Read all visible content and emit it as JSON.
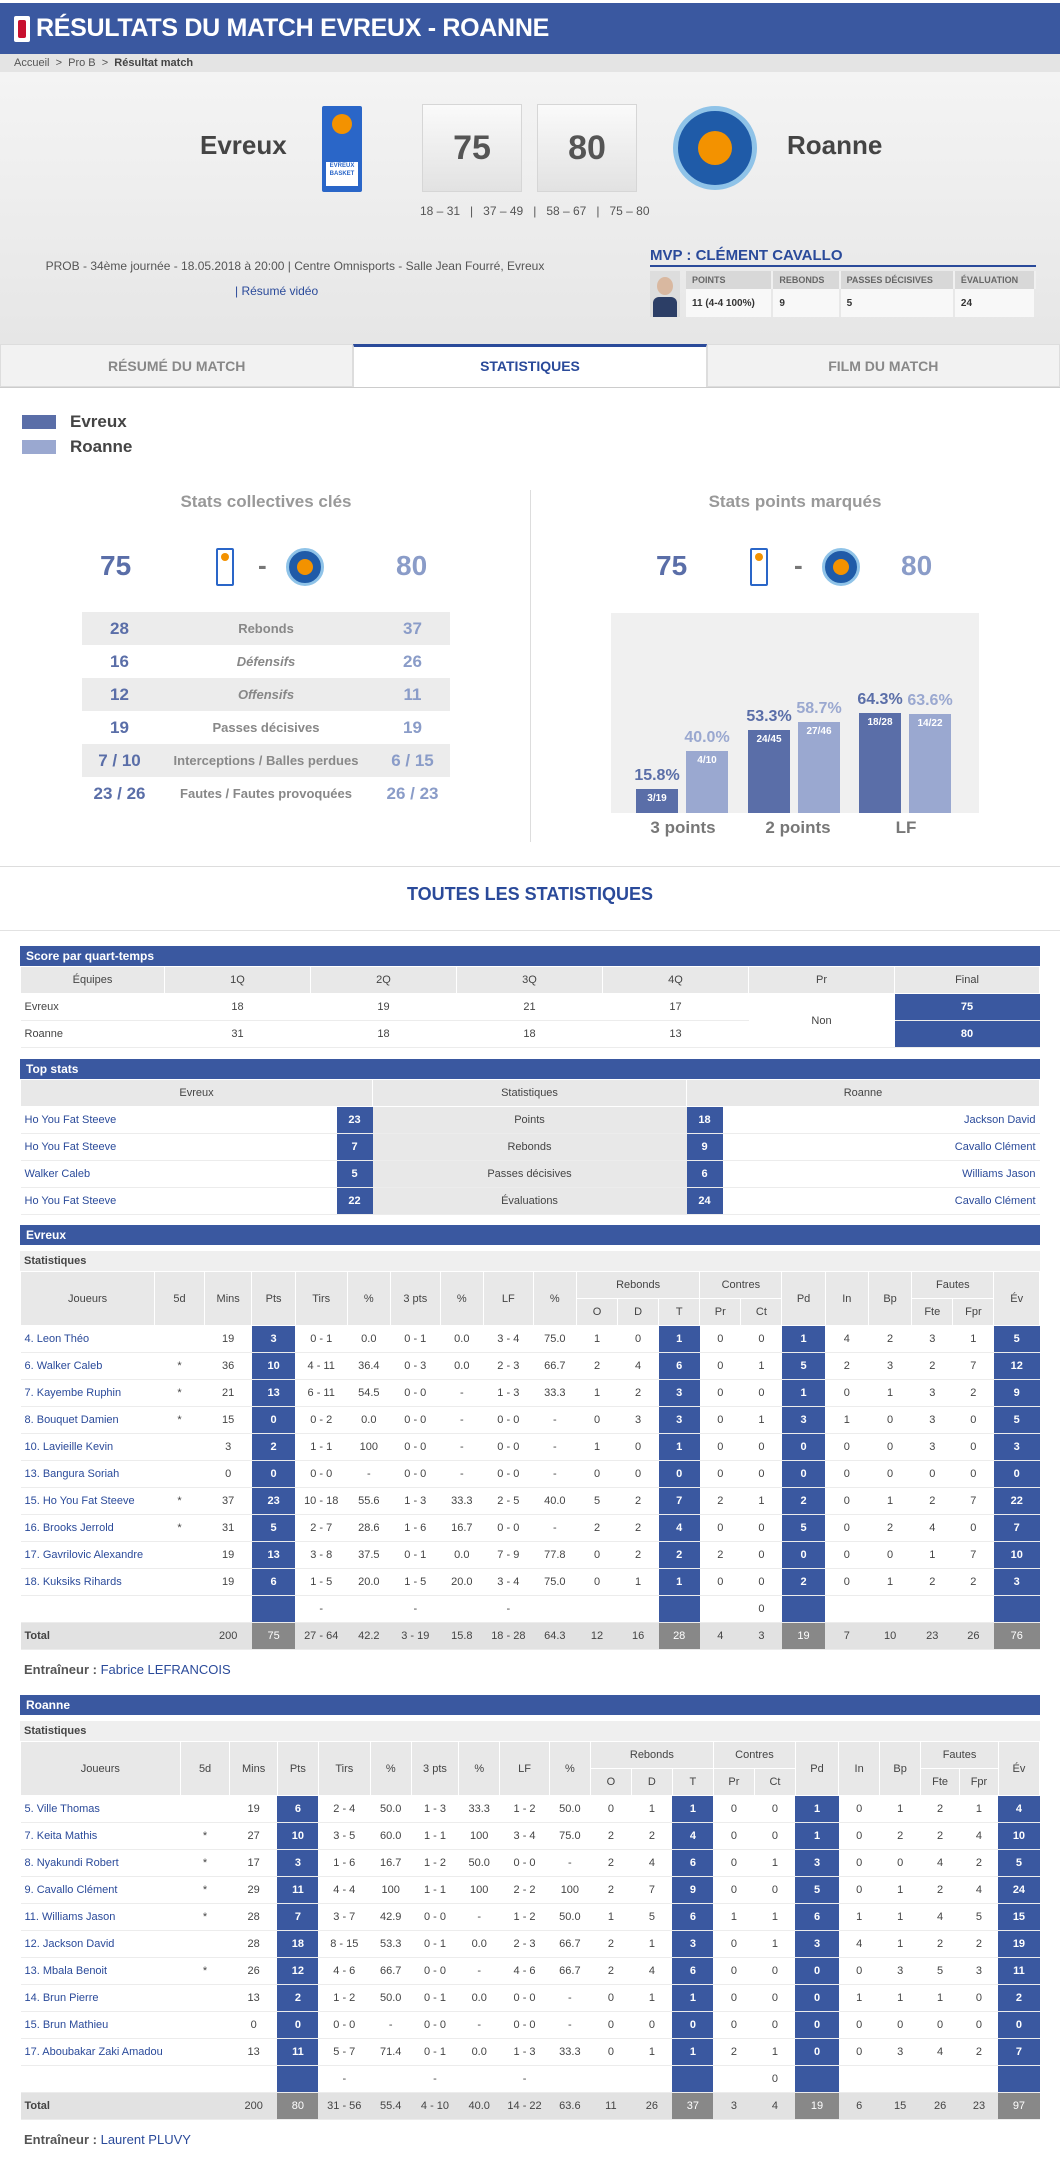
{
  "header": {
    "title": "RÉSULTATS DU MATCH EVREUX - ROANNE"
  },
  "breadcrumb": {
    "home": "Accueil",
    "league": "Pro B",
    "current": "Résultat match"
  },
  "match": {
    "home": "Evreux",
    "away": "Roanne",
    "home_score": "75",
    "away_score": "80",
    "quarters": "18 – 31   |   37 – 49   |   58 – 67   |   75 – 80",
    "info": "PROB - 34ème journée - 18.05.2018 à 20:00 | Centre Omnisports - Salle Jean Fourré, Evreux",
    "video": "| Résumé vidéo"
  },
  "mvp": {
    "title": "MVP : CLÉMENT CAVALLO",
    "headers": [
      "POINTS",
      "REBONDS",
      "PASSES DÉCISIVES",
      "ÉVALUATION"
    ],
    "values": [
      "11 (4-4 100%)",
      "9",
      "5",
      "24"
    ]
  },
  "tabs": [
    "RÉSUMÉ DU MATCH",
    "STATISTIQUES",
    "FILM DU MATCH"
  ],
  "legend": {
    "home": "Evreux",
    "away": "Roanne"
  },
  "key_stats": {
    "title": "Stats collectives clés",
    "rows": [
      [
        "28",
        "Rebonds",
        "37"
      ],
      [
        "16",
        "Défensifs",
        "26"
      ],
      [
        "12",
        "Offensifs",
        "11"
      ],
      [
        "19",
        "Passes décisives",
        "19"
      ],
      [
        "7 / 10",
        "Interceptions / Balles perdues",
        "6 / 15"
      ],
      [
        "23 / 26",
        "Fautes / Fautes provoquées",
        "26 / 23"
      ]
    ]
  },
  "points_chart": {
    "title": "Stats points marqués"
  },
  "chart_data": {
    "type": "bar",
    "categories": [
      "3 points",
      "2 points",
      "LF"
    ],
    "series": [
      {
        "name": "Evreux",
        "values": [
          15.8,
          53.3,
          64.3
        ],
        "labels": [
          "3/19",
          "24/45",
          "18/28"
        ],
        "pct": [
          "15.8%",
          "53.3%",
          "64.3%"
        ]
      },
      {
        "name": "Roanne",
        "values": [
          40.0,
          58.7,
          63.6
        ],
        "labels": [
          "4/10",
          "27/46",
          "14/22"
        ],
        "pct": [
          "40.0%",
          "58.7%",
          "63.6%"
        ]
      }
    ],
    "ylim": [
      0,
      100
    ]
  },
  "colors": {
    "home": "#5a6ea8",
    "away": "#9aa8d0",
    "accent": "#3a58a0"
  },
  "all_title": "TOUTES LES STATISTIQUES",
  "quarters_tbl": {
    "title": "Score par quart-temps",
    "headers": [
      "Équipes",
      "1Q",
      "2Q",
      "3Q",
      "4Q",
      "Pr",
      "Final"
    ],
    "rows": [
      [
        "Evreux",
        "18",
        "19",
        "21",
        "17",
        "75"
      ],
      [
        "Roanne",
        "31",
        "18",
        "18",
        "13",
        "80"
      ]
    ],
    "pr": "Non"
  },
  "top": {
    "title": "Top stats",
    "headers": [
      "Evreux",
      "Statistiques",
      "Roanne"
    ],
    "rows": [
      [
        "Ho You Fat Steeve",
        "23",
        "Points",
        "18",
        "Jackson David"
      ],
      [
        "Ho You Fat Steeve",
        "7",
        "Rebonds",
        "9",
        "Cavallo Clément"
      ],
      [
        "Walker Caleb",
        "5",
        "Passes décisives",
        "6",
        "Williams Jason"
      ],
      [
        "Ho You Fat Steeve",
        "22",
        "Évaluations",
        "24",
        "Cavallo Clément"
      ]
    ]
  },
  "stat_headers": {
    "sub": "Statistiques",
    "joueurs": "Joueurs",
    "sd": "5d",
    "mins": "Mins",
    "pts": "Pts",
    "tirs": "Tirs",
    "pct": "%",
    "p3": "3 pts",
    "lf": "LF",
    "rebonds": "Rebonds",
    "o": "O",
    "d": "D",
    "t": "T",
    "contres": "Contres",
    "pr": "Pr",
    "ct": "Ct",
    "pd": "Pd",
    "in": "In",
    "bp": "Bp",
    "fautes": "Fautes",
    "fte": "Fte",
    "fpr": "Fpr",
    "ev": "Év"
  },
  "evreux": {
    "title": "Evreux",
    "coach_label": "Entraîneur :",
    "coach": "Fabrice LEFRANCOIS",
    "rows": [
      [
        "4. Leon Théo",
        "",
        "19",
        "3",
        "0 - 1",
        "0.0",
        "0 - 1",
        "0.0",
        "3 - 4",
        "75.0",
        "1",
        "0",
        "1",
        "0",
        "0",
        "1",
        "4",
        "2",
        "3",
        "1",
        "5"
      ],
      [
        "6. Walker Caleb",
        "*",
        "36",
        "10",
        "4 - 11",
        "36.4",
        "0 - 3",
        "0.0",
        "2 - 3",
        "66.7",
        "2",
        "4",
        "6",
        "0",
        "1",
        "5",
        "2",
        "3",
        "2",
        "7",
        "12"
      ],
      [
        "7. Kayembe Ruphin",
        "*",
        "21",
        "13",
        "6 - 11",
        "54.5",
        "0 - 0",
        "-",
        "1 - 3",
        "33.3",
        "1",
        "2",
        "3",
        "0",
        "0",
        "1",
        "0",
        "1",
        "3",
        "2",
        "9"
      ],
      [
        "8. Bouquet Damien",
        "*",
        "15",
        "0",
        "0 - 2",
        "0.0",
        "0 - 0",
        "-",
        "0 - 0",
        "-",
        "0",
        "3",
        "3",
        "0",
        "1",
        "3",
        "1",
        "0",
        "3",
        "0",
        "5"
      ],
      [
        "10. Lavieille Kevin",
        "",
        "3",
        "2",
        "1 - 1",
        "100",
        "0 - 0",
        "-",
        "0 - 0",
        "-",
        "1",
        "0",
        "1",
        "0",
        "0",
        "0",
        "0",
        "0",
        "3",
        "0",
        "3"
      ],
      [
        "13. Bangura Soriah",
        "",
        "0",
        "0",
        "0 - 0",
        "-",
        "0 - 0",
        "-",
        "0 - 0",
        "-",
        "0",
        "0",
        "0",
        "0",
        "0",
        "0",
        "0",
        "0",
        "0",
        "0",
        "0"
      ],
      [
        "15. Ho You Fat Steeve",
        "*",
        "37",
        "23",
        "10 - 18",
        "55.6",
        "1 - 3",
        "33.3",
        "2 - 5",
        "40.0",
        "5",
        "2",
        "7",
        "2",
        "1",
        "2",
        "0",
        "1",
        "2",
        "7",
        "22"
      ],
      [
        "16. Brooks Jerrold",
        "*",
        "31",
        "5",
        "2 - 7",
        "28.6",
        "1 - 6",
        "16.7",
        "0 - 0",
        "-",
        "2",
        "2",
        "4",
        "0",
        "0",
        "5",
        "0",
        "2",
        "4",
        "0",
        "7"
      ],
      [
        "17. Gavrilovic Alexandre",
        "",
        "19",
        "13",
        "3 - 8",
        "37.5",
        "0 - 1",
        "0.0",
        "7 - 9",
        "77.8",
        "0",
        "2",
        "2",
        "2",
        "0",
        "0",
        "0",
        "0",
        "1",
        "7",
        "10"
      ],
      [
        "18. Kuksiks Rihards",
        "",
        "19",
        "6",
        "1 - 5",
        "20.0",
        "1 - 5",
        "20.0",
        "3 - 4",
        "75.0",
        "0",
        "1",
        "1",
        "0",
        "0",
        "2",
        "0",
        "1",
        "2",
        "2",
        "3"
      ],
      [
        "",
        "",
        "",
        "",
        "-",
        "",
        "-",
        "",
        "-",
        "",
        "",
        "",
        "",
        "",
        "0",
        "",
        "",
        "",
        "",
        "",
        ""
      ],
      [
        "Total",
        "",
        "200",
        "75",
        "27 - 64",
        "42.2",
        "3 - 19",
        "15.8",
        "18 - 28",
        "64.3",
        "12",
        "16",
        "28",
        "4",
        "3",
        "19",
        "7",
        "10",
        "23",
        "26",
        "76"
      ]
    ]
  },
  "roanne": {
    "title": "Roanne",
    "coach_label": "Entraîneur :",
    "coach": "Laurent PLUVY",
    "rows": [
      [
        "5. Ville Thomas",
        "",
        "19",
        "6",
        "2 - 4",
        "50.0",
        "1 - 3",
        "33.3",
        "1 - 2",
        "50.0",
        "0",
        "1",
        "1",
        "0",
        "0",
        "1",
        "0",
        "1",
        "2",
        "1",
        "4"
      ],
      [
        "7. Keita Mathis",
        "*",
        "27",
        "10",
        "3 - 5",
        "60.0",
        "1 - 1",
        "100",
        "3 - 4",
        "75.0",
        "2",
        "2",
        "4",
        "0",
        "0",
        "1",
        "0",
        "2",
        "2",
        "4",
        "10"
      ],
      [
        "8. Nyakundi Robert",
        "*",
        "17",
        "3",
        "1 - 6",
        "16.7",
        "1 - 2",
        "50.0",
        "0 - 0",
        "-",
        "2",
        "4",
        "6",
        "0",
        "1",
        "3",
        "0",
        "0",
        "4",
        "2",
        "5"
      ],
      [
        "9. Cavallo Clément",
        "*",
        "29",
        "11",
        "4 - 4",
        "100",
        "1 - 1",
        "100",
        "2 - 2",
        "100",
        "2",
        "7",
        "9",
        "0",
        "0",
        "5",
        "0",
        "1",
        "2",
        "4",
        "24"
      ],
      [
        "11. Williams Jason",
        "*",
        "28",
        "7",
        "3 - 7",
        "42.9",
        "0 - 0",
        "-",
        "1 - 2",
        "50.0",
        "1",
        "5",
        "6",
        "1",
        "1",
        "6",
        "1",
        "1",
        "4",
        "5",
        "15"
      ],
      [
        "12. Jackson David",
        "",
        "28",
        "18",
        "8 - 15",
        "53.3",
        "0 - 1",
        "0.0",
        "2 - 3",
        "66.7",
        "2",
        "1",
        "3",
        "0",
        "1",
        "3",
        "4",
        "1",
        "2",
        "2",
        "19"
      ],
      [
        "13. Mbala Benoit",
        "*",
        "26",
        "12",
        "4 - 6",
        "66.7",
        "0 - 0",
        "-",
        "4 - 6",
        "66.7",
        "2",
        "4",
        "6",
        "0",
        "0",
        "0",
        "0",
        "3",
        "5",
        "3",
        "11"
      ],
      [
        "14. Brun Pierre",
        "",
        "13",
        "2",
        "1 - 2",
        "50.0",
        "0 - 1",
        "0.0",
        "0 - 0",
        "-",
        "0",
        "1",
        "1",
        "0",
        "0",
        "0",
        "1",
        "1",
        "1",
        "0",
        "2"
      ],
      [
        "15. Brun Mathieu",
        "",
        "0",
        "0",
        "0 - 0",
        "-",
        "0 - 0",
        "-",
        "0 - 0",
        "-",
        "0",
        "0",
        "0",
        "0",
        "0",
        "0",
        "0",
        "0",
        "0",
        "0",
        "0"
      ],
      [
        "17. Aboubakar Zaki Amadou",
        "",
        "13",
        "11",
        "5 - 7",
        "71.4",
        "0 - 1",
        "0.0",
        "1 - 3",
        "33.3",
        "0",
        "1",
        "1",
        "2",
        "1",
        "0",
        "0",
        "3",
        "4",
        "2",
        "7"
      ],
      [
        "",
        "",
        "",
        "",
        "-",
        "",
        "-",
        "",
        "-",
        "",
        "",
        "",
        "",
        "",
        "0",
        "",
        "",
        "",
        "",
        "",
        ""
      ],
      [
        "Total",
        "",
        "200",
        "80",
        "31 - 56",
        "55.4",
        "4 - 10",
        "40.0",
        "14 - 22",
        "63.6",
        "11",
        "26",
        "37",
        "3",
        "4",
        "19",
        "6",
        "15",
        "26",
        "23",
        "97"
      ]
    ]
  }
}
